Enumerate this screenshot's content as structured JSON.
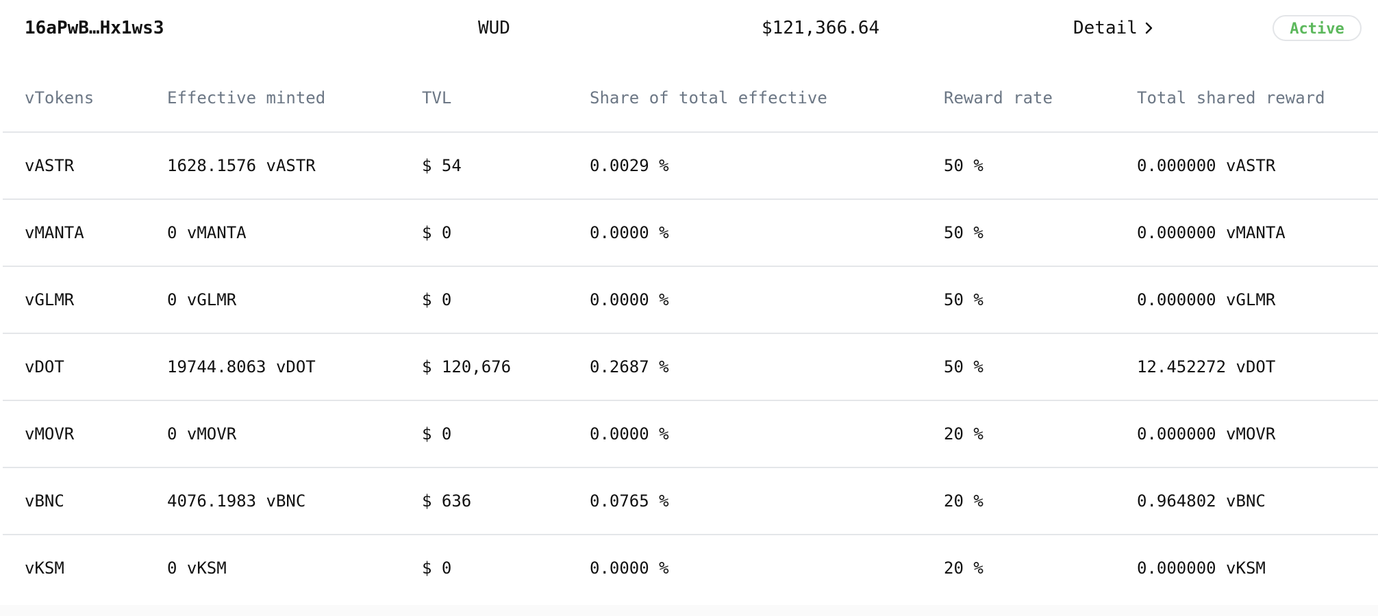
{
  "summary": {
    "address": "16aPwB…Hx1ws3",
    "symbol": "WUD",
    "total_value": "$121,366.64",
    "detail_label": "Detail",
    "status": "Active"
  },
  "colors": {
    "status_active": "#5cb85c",
    "header_text": "#6c7785",
    "divider": "#e4e6e9"
  },
  "table": {
    "columns": [
      "vTokens",
      "Effective minted",
      "TVL",
      "Share of total effective",
      "Reward rate",
      "Total shared reward"
    ],
    "rows": [
      [
        "vASTR",
        "1628.1576 vASTR",
        "$ 54",
        "0.0029 %",
        "50 %",
        "0.000000 vASTR"
      ],
      [
        "vMANTA",
        "0 vMANTA",
        "$ 0",
        "0.0000 %",
        "50 %",
        "0.000000 vMANTA"
      ],
      [
        "vGLMR",
        "0 vGLMR",
        "$ 0",
        "0.0000 %",
        "50 %",
        "0.000000 vGLMR"
      ],
      [
        "vDOT",
        "19744.8063 vDOT",
        "$ 120,676",
        "0.2687 %",
        "50 %",
        "12.452272 vDOT"
      ],
      [
        "vMOVR",
        "0 vMOVR",
        "$ 0",
        "0.0000 %",
        "20 %",
        "0.000000 vMOVR"
      ],
      [
        "vBNC",
        "4076.1983 vBNC",
        "$ 636",
        "0.0765 %",
        "20 %",
        "0.964802 vBNC"
      ],
      [
        "vKSM",
        "0 vKSM",
        "$ 0",
        "0.0000 %",
        "20 %",
        "0.000000 vKSM"
      ]
    ]
  }
}
